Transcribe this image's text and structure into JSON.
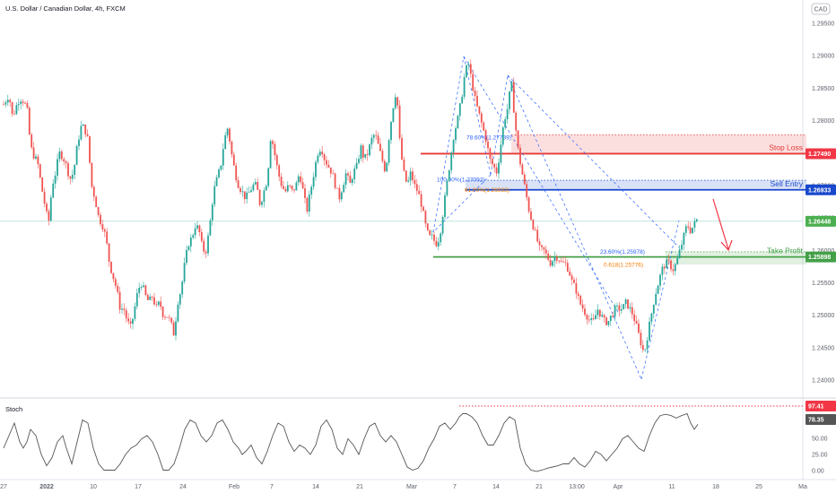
{
  "chart_data": {
    "type": "candlestick",
    "title": "U.S. Dollar / Canadian Dollar, 4h, FXCM",
    "currency": "CAD",
    "x_ticks": [
      "27",
      "2022",
      "10",
      "17",
      "24",
      "Feb",
      "7",
      "14",
      "21",
      "Mar",
      "7",
      "14",
      "21",
      "13:00",
      "Apr",
      "11",
      "18",
      "25",
      "Ma"
    ],
    "y_ticks": [
      "1.29500",
      "1.29000",
      "1.28500",
      "1.28000",
      "1.27500",
      "1.27000",
      "1.26500",
      "1.26000",
      "1.25500",
      "1.25000",
      "1.24500",
      "1.24000"
    ],
    "ylim": [
      1.238,
      1.297
    ],
    "close_path": [
      [
        0,
        1.2825
      ],
      [
        6,
        1.284
      ],
      [
        10,
        1.2805
      ],
      [
        16,
        1.283
      ],
      [
        20,
        1.2835
      ],
      [
        26,
        1.282
      ],
      [
        30,
        1.276
      ],
      [
        34,
        1.2745
      ],
      [
        38,
        1.2735
      ],
      [
        42,
        1.27
      ],
      [
        46,
        1.267
      ],
      [
        50,
        1.264
      ],
      [
        54,
        1.27
      ],
      [
        58,
        1.272
      ],
      [
        62,
        1.275
      ],
      [
        66,
        1.2745
      ],
      [
        70,
        1.273
      ],
      [
        74,
        1.271
      ],
      [
        78,
        1.272
      ],
      [
        82,
        1.276
      ],
      [
        86,
        1.279
      ],
      [
        90,
        1.279
      ],
      [
        94,
        1.277
      ],
      [
        98,
        1.27
      ],
      [
        102,
        1.268
      ],
      [
        106,
        1.265
      ],
      [
        110,
        1.264
      ],
      [
        114,
        1.262
      ],
      [
        118,
        1.258
      ],
      [
        122,
        1.256
      ],
      [
        126,
        1.254
      ],
      [
        130,
        1.251
      ],
      [
        134,
        1.251
      ],
      [
        138,
        1.249
      ],
      [
        142,
        1.248
      ],
      [
        146,
        1.251
      ],
      [
        150,
        1.254
      ],
      [
        154,
        1.255
      ],
      [
        158,
        1.253
      ],
      [
        162,
        1.252
      ],
      [
        166,
        1.253
      ],
      [
        170,
        1.251
      ],
      [
        174,
        1.252
      ],
      [
        178,
        1.25
      ],
      [
        182,
        1.25
      ],
      [
        186,
        1.249
      ],
      [
        190,
        1.247
      ],
      [
        194,
        1.252
      ],
      [
        198,
        1.254
      ],
      [
        202,
        1.258
      ],
      [
        206,
        1.261
      ],
      [
        210,
        1.262
      ],
      [
        214,
        1.264
      ],
      [
        218,
        1.263
      ],
      [
        222,
        1.26
      ],
      [
        226,
        1.26
      ],
      [
        230,
        1.264
      ],
      [
        234,
        1.269
      ],
      [
        238,
        1.271
      ],
      [
        242,
        1.273
      ],
      [
        246,
        1.277
      ],
      [
        250,
        1.279
      ],
      [
        254,
        1.275
      ],
      [
        258,
        1.272
      ],
      [
        262,
        1.27
      ],
      [
        266,
        1.269
      ],
      [
        270,
        1.268
      ],
      [
        274,
        1.269
      ],
      [
        278,
        1.27
      ],
      [
        282,
        1.27
      ],
      [
        286,
        1.267
      ],
      [
        290,
        1.269
      ],
      [
        294,
        1.271
      ],
      [
        298,
        1.278
      ],
      [
        302,
        1.275
      ],
      [
        306,
        1.272
      ],
      [
        310,
        1.27
      ],
      [
        314,
        1.269
      ],
      [
        318,
        1.27
      ],
      [
        322,
        1.269
      ],
      [
        326,
        1.27
      ],
      [
        330,
        1.272
      ],
      [
        334,
        1.269
      ],
      [
        338,
        1.266
      ],
      [
        342,
        1.269
      ],
      [
        346,
        1.272
      ],
      [
        350,
        1.275
      ],
      [
        354,
        1.276
      ],
      [
        358,
        1.274
      ],
      [
        362,
        1.273
      ],
      [
        366,
        1.272
      ],
      [
        370,
        1.27
      ],
      [
        374,
        1.268
      ],
      [
        378,
        1.27
      ],
      [
        382,
        1.272
      ],
      [
        386,
        1.27
      ],
      [
        390,
        1.272
      ],
      [
        394,
        1.273
      ],
      [
        398,
        1.276
      ],
      [
        402,
        1.274
      ],
      [
        406,
        1.275
      ],
      [
        410,
        1.277
      ],
      [
        414,
        1.278
      ],
      [
        418,
        1.276
      ],
      [
        422,
        1.274
      ],
      [
        426,
        1.272
      ],
      [
        430,
        1.278
      ],
      [
        434,
        1.282
      ],
      [
        438,
        1.285
      ],
      [
        442,
        1.276
      ],
      [
        446,
        1.272
      ],
      [
        450,
        1.27
      ],
      [
        454,
        1.272
      ],
      [
        458,
        1.27
      ],
      [
        462,
        1.269
      ],
      [
        466,
        1.267
      ],
      [
        470,
        1.264
      ],
      [
        474,
        1.262
      ],
      [
        478,
        1.262
      ],
      [
        482,
        1.261
      ],
      [
        486,
        1.262
      ],
      [
        490,
        1.266
      ],
      [
        494,
        1.27
      ],
      [
        498,
        1.274
      ],
      [
        502,
        1.278
      ],
      [
        506,
        1.28
      ],
      [
        510,
        1.283
      ],
      [
        514,
        1.287
      ],
      [
        518,
        1.289
      ],
      [
        522,
        1.286
      ],
      [
        526,
        1.283
      ],
      [
        530,
        1.281
      ],
      [
        534,
        1.279
      ],
      [
        538,
        1.277
      ],
      [
        542,
        1.274
      ],
      [
        546,
        1.273
      ],
      [
        550,
        1.272
      ],
      [
        554,
        1.276
      ],
      [
        558,
        1.28
      ],
      [
        562,
        1.282
      ],
      [
        566,
        1.286
      ],
      [
        570,
        1.28
      ],
      [
        574,
        1.275
      ],
      [
        578,
        1.272
      ],
      [
        582,
        1.269
      ],
      [
        586,
        1.266
      ],
      [
        590,
        1.264
      ],
      [
        594,
        1.262
      ],
      [
        598,
        1.26
      ],
      [
        602,
        1.26
      ],
      [
        606,
        1.259
      ],
      [
        610,
        1.258
      ],
      [
        614,
        1.259
      ],
      [
        618,
        1.259
      ],
      [
        622,
        1.258
      ],
      [
        626,
        1.258
      ],
      [
        630,
        1.257
      ],
      [
        634,
        1.255
      ],
      [
        638,
        1.254
      ],
      [
        642,
        1.252
      ],
      [
        646,
        1.251
      ],
      [
        650,
        1.25
      ],
      [
        654,
        1.249
      ],
      [
        658,
        1.249
      ],
      [
        662,
        1.251
      ],
      [
        666,
        1.25
      ],
      [
        670,
        1.249
      ],
      [
        674,
        1.249
      ],
      [
        678,
        1.25
      ],
      [
        682,
        1.251
      ],
      [
        686,
        1.251
      ],
      [
        690,
        1.251
      ],
      [
        694,
        1.252
      ],
      [
        698,
        1.251
      ],
      [
        702,
        1.25
      ],
      [
        706,
        1.248
      ],
      [
        710,
        1.246
      ],
      [
        714,
        1.244
      ],
      [
        718,
        1.247
      ],
      [
        722,
        1.25
      ],
      [
        726,
        1.253
      ],
      [
        730,
        1.255
      ],
      [
        734,
        1.257
      ],
      [
        738,
        1.258
      ],
      [
        742,
        1.258
      ],
      [
        746,
        1.257
      ],
      [
        750,
        1.258
      ],
      [
        754,
        1.26
      ],
      [
        758,
        1.262
      ],
      [
        762,
        1.264
      ],
      [
        766,
        1.263
      ],
      [
        770,
        1.264
      ],
      [
        774,
        1.265
      ]
    ],
    "stoch_path": [
      [
        0,
        40
      ],
      [
        6,
        60
      ],
      [
        12,
        80
      ],
      [
        18,
        50
      ],
      [
        22,
        40
      ],
      [
        26,
        50
      ],
      [
        30,
        70
      ],
      [
        36,
        60
      ],
      [
        42,
        30
      ],
      [
        48,
        12
      ],
      [
        54,
        25
      ],
      [
        60,
        50
      ],
      [
        66,
        60
      ],
      [
        70,
        40
      ],
      [
        76,
        15
      ],
      [
        82,
        50
      ],
      [
        88,
        85
      ],
      [
        94,
        80
      ],
      [
        100,
        40
      ],
      [
        106,
        15
      ],
      [
        112,
        5
      ],
      [
        118,
        5
      ],
      [
        124,
        5
      ],
      [
        130,
        15
      ],
      [
        136,
        30
      ],
      [
        142,
        40
      ],
      [
        148,
        45
      ],
      [
        154,
        55
      ],
      [
        160,
        60
      ],
      [
        166,
        50
      ],
      [
        172,
        30
      ],
      [
        178,
        5
      ],
      [
        184,
        5
      ],
      [
        190,
        15
      ],
      [
        196,
        40
      ],
      [
        202,
        70
      ],
      [
        208,
        85
      ],
      [
        214,
        80
      ],
      [
        220,
        60
      ],
      [
        226,
        50
      ],
      [
        232,
        60
      ],
      [
        238,
        80
      ],
      [
        244,
        85
      ],
      [
        250,
        70
      ],
      [
        256,
        50
      ],
      [
        262,
        40
      ],
      [
        266,
        30
      ],
      [
        270,
        35
      ],
      [
        276,
        45
      ],
      [
        282,
        25
      ],
      [
        288,
        15
      ],
      [
        294,
        35
      ],
      [
        300,
        60
      ],
      [
        306,
        80
      ],
      [
        312,
        75
      ],
      [
        318,
        50
      ],
      [
        324,
        35
      ],
      [
        330,
        45
      ],
      [
        336,
        40
      ],
      [
        342,
        30
      ],
      [
        348,
        45
      ],
      [
        354,
        75
      ],
      [
        360,
        85
      ],
      [
        366,
        70
      ],
      [
        372,
        40
      ],
      [
        378,
        30
      ],
      [
        384,
        55
      ],
      [
        390,
        45
      ],
      [
        396,
        30
      ],
      [
        402,
        55
      ],
      [
        408,
        75
      ],
      [
        414,
        80
      ],
      [
        420,
        60
      ],
      [
        426,
        50
      ],
      [
        432,
        60
      ],
      [
        438,
        50
      ],
      [
        444,
        30
      ],
      [
        450,
        10
      ],
      [
        456,
        5
      ],
      [
        462,
        8
      ],
      [
        468,
        20
      ],
      [
        474,
        40
      ],
      [
        480,
        55
      ],
      [
        486,
        75
      ],
      [
        492,
        80
      ],
      [
        498,
        70
      ],
      [
        504,
        80
      ],
      [
        508,
        90
      ],
      [
        512,
        95
      ],
      [
        516,
        95
      ],
      [
        522,
        90
      ],
      [
        528,
        80
      ],
      [
        534,
        60
      ],
      [
        540,
        45
      ],
      [
        546,
        45
      ],
      [
        552,
        60
      ],
      [
        558,
        80
      ],
      [
        564,
        90
      ],
      [
        570,
        85
      ],
      [
        576,
        40
      ],
      [
        582,
        15
      ],
      [
        588,
        5
      ],
      [
        594,
        3
      ],
      [
        600,
        5
      ],
      [
        606,
        8
      ],
      [
        612,
        10
      ],
      [
        618,
        12
      ],
      [
        624,
        15
      ],
      [
        630,
        15
      ],
      [
        636,
        25
      ],
      [
        642,
        15
      ],
      [
        648,
        10
      ],
      [
        654,
        20
      ],
      [
        660,
        35
      ],
      [
        666,
        30
      ],
      [
        672,
        20
      ],
      [
        678,
        30
      ],
      [
        684,
        40
      ],
      [
        690,
        55
      ],
      [
        696,
        60
      ],
      [
        702,
        50
      ],
      [
        708,
        40
      ],
      [
        714,
        35
      ],
      [
        720,
        60
      ],
      [
        726,
        80
      ],
      [
        732,
        92
      ],
      [
        738,
        94
      ],
      [
        744,
        92
      ],
      [
        750,
        88
      ],
      [
        756,
        92
      ],
      [
        762,
        95
      ],
      [
        766,
        80
      ],
      [
        770,
        70
      ],
      [
        774,
        78
      ]
    ],
    "stochastic": {
      "label": "Stoch",
      "ticks": [
        "50.00",
        "25.00",
        "0.00"
      ],
      "overbought_value": "97.41",
      "current_value": "78.35",
      "ylim": [
        0,
        100
      ]
    },
    "price_tags": [
      {
        "label": "1.27490",
        "value": 1.2749,
        "color": "#f23645"
      },
      {
        "label": "1.26933",
        "value": 1.26933,
        "color": "#1848cc"
      },
      {
        "label": "1.26448",
        "value": 1.26448,
        "color": "#4caf50"
      },
      {
        "label": "1.25898",
        "value": 1.25898,
        "color": "#43a047"
      }
    ],
    "zones": [
      {
        "label": "Stop Loss",
        "value": 1.2749,
        "band": [
          1.2749,
          1.2778
        ],
        "color": "#e53935"
      },
      {
        "label": "Sell Entry",
        "value": 1.26933,
        "band": [
          1.26933,
          1.2708
        ],
        "color": "#1848cc"
      },
      {
        "label": "Take Profit",
        "value": 1.25898,
        "band": [
          1.2578,
          1.25978
        ],
        "color": "#43a047"
      }
    ],
    "fib_labels": [
      {
        "text": "78.60%(1.27739)",
        "value": 1.2774,
        "color": "#2962ff"
      },
      {
        "text": "100.00%(1.27092)",
        "value": 1.2709,
        "color": "#2962ff"
      },
      {
        "text": "61.80%(1.26933)",
        "value": 1.26933,
        "color": "#f57c00"
      },
      {
        "text": "23.60%(1.25978)",
        "value": 1.25978,
        "color": "#2962ff"
      },
      {
        "text": "0.618(1.25776)",
        "value": 1.25776,
        "color": "#f57c00"
      }
    ],
    "colors": {
      "up": "#26a69a",
      "down": "#ef5350",
      "stoch": "#555555",
      "dash": "#2962ff"
    }
  }
}
